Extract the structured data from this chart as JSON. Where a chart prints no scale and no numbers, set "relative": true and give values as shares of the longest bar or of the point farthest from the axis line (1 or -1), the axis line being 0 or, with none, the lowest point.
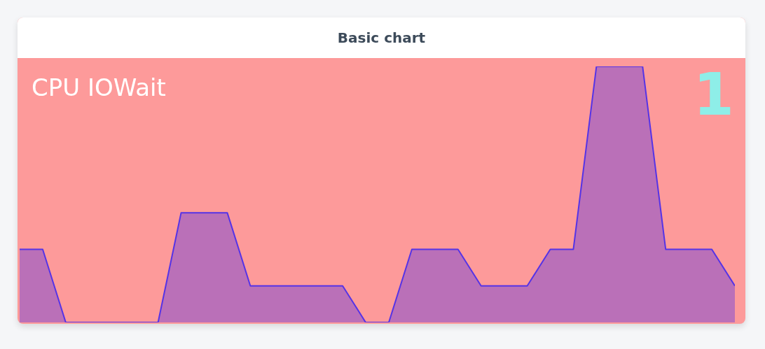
{
  "chart_data": {
    "type": "area",
    "title": "Basic chart",
    "subtitle": "CPU IOWait",
    "annotations": [
      "1"
    ],
    "relative": true,
    "categories": [
      null,
      null,
      null,
      null,
      null,
      null,
      null,
      null,
      null,
      null,
      null,
      null,
      null,
      null,
      null,
      null,
      null,
      null,
      null,
      null,
      null,
      null,
      null,
      null,
      null,
      null,
      null,
      null,
      null,
      null,
      null,
      null
    ],
    "series": [
      {
        "color": "#5533e6",
        "values": [
          0.2857,
          0.2857,
          0,
          0,
          0,
          0,
          0,
          0.4286,
          0.4286,
          0.4286,
          0.1429,
          0.1429,
          0.1429,
          0.1429,
          0.1429,
          0,
          0,
          0.2857,
          0.2857,
          0.2857,
          0.1429,
          0.1429,
          0.1429,
          0.2857,
          0.2857,
          1,
          1,
          1,
          0.2857,
          0.2857,
          0.2857,
          0.1429
        ]
      }
    ]
  }
}
